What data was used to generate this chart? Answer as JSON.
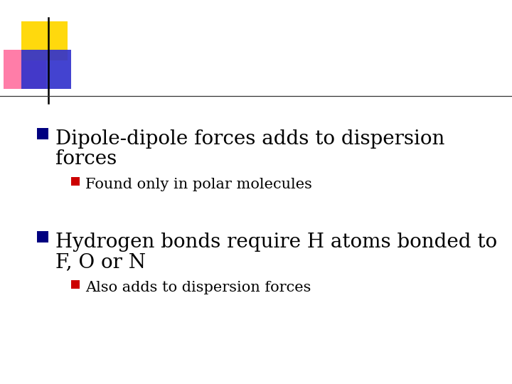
{
  "background_color": "#ffffff",
  "logo_yellow": "#FFD700",
  "logo_pink": "#FF6699",
  "logo_blue": "#3333cc",
  "line_color": "#333333",
  "bullet_main_color": "#000080",
  "bullet_sub_color": "#cc0000",
  "bullet1_text_line1": "Dipole-dipole forces adds to dispersion",
  "bullet1_text_line2": "forces",
  "sub_bullet1_text": "Found only in polar molecules",
  "bullet2_text_line1": "Hydrogen bonds require H atoms bonded to",
  "bullet2_text_line2": "F, O or N",
  "sub_bullet2_text": "Also adds to dispersion forces",
  "main_font_size": 20,
  "sub_font_size": 15,
  "font_family": "DejaVu Serif"
}
